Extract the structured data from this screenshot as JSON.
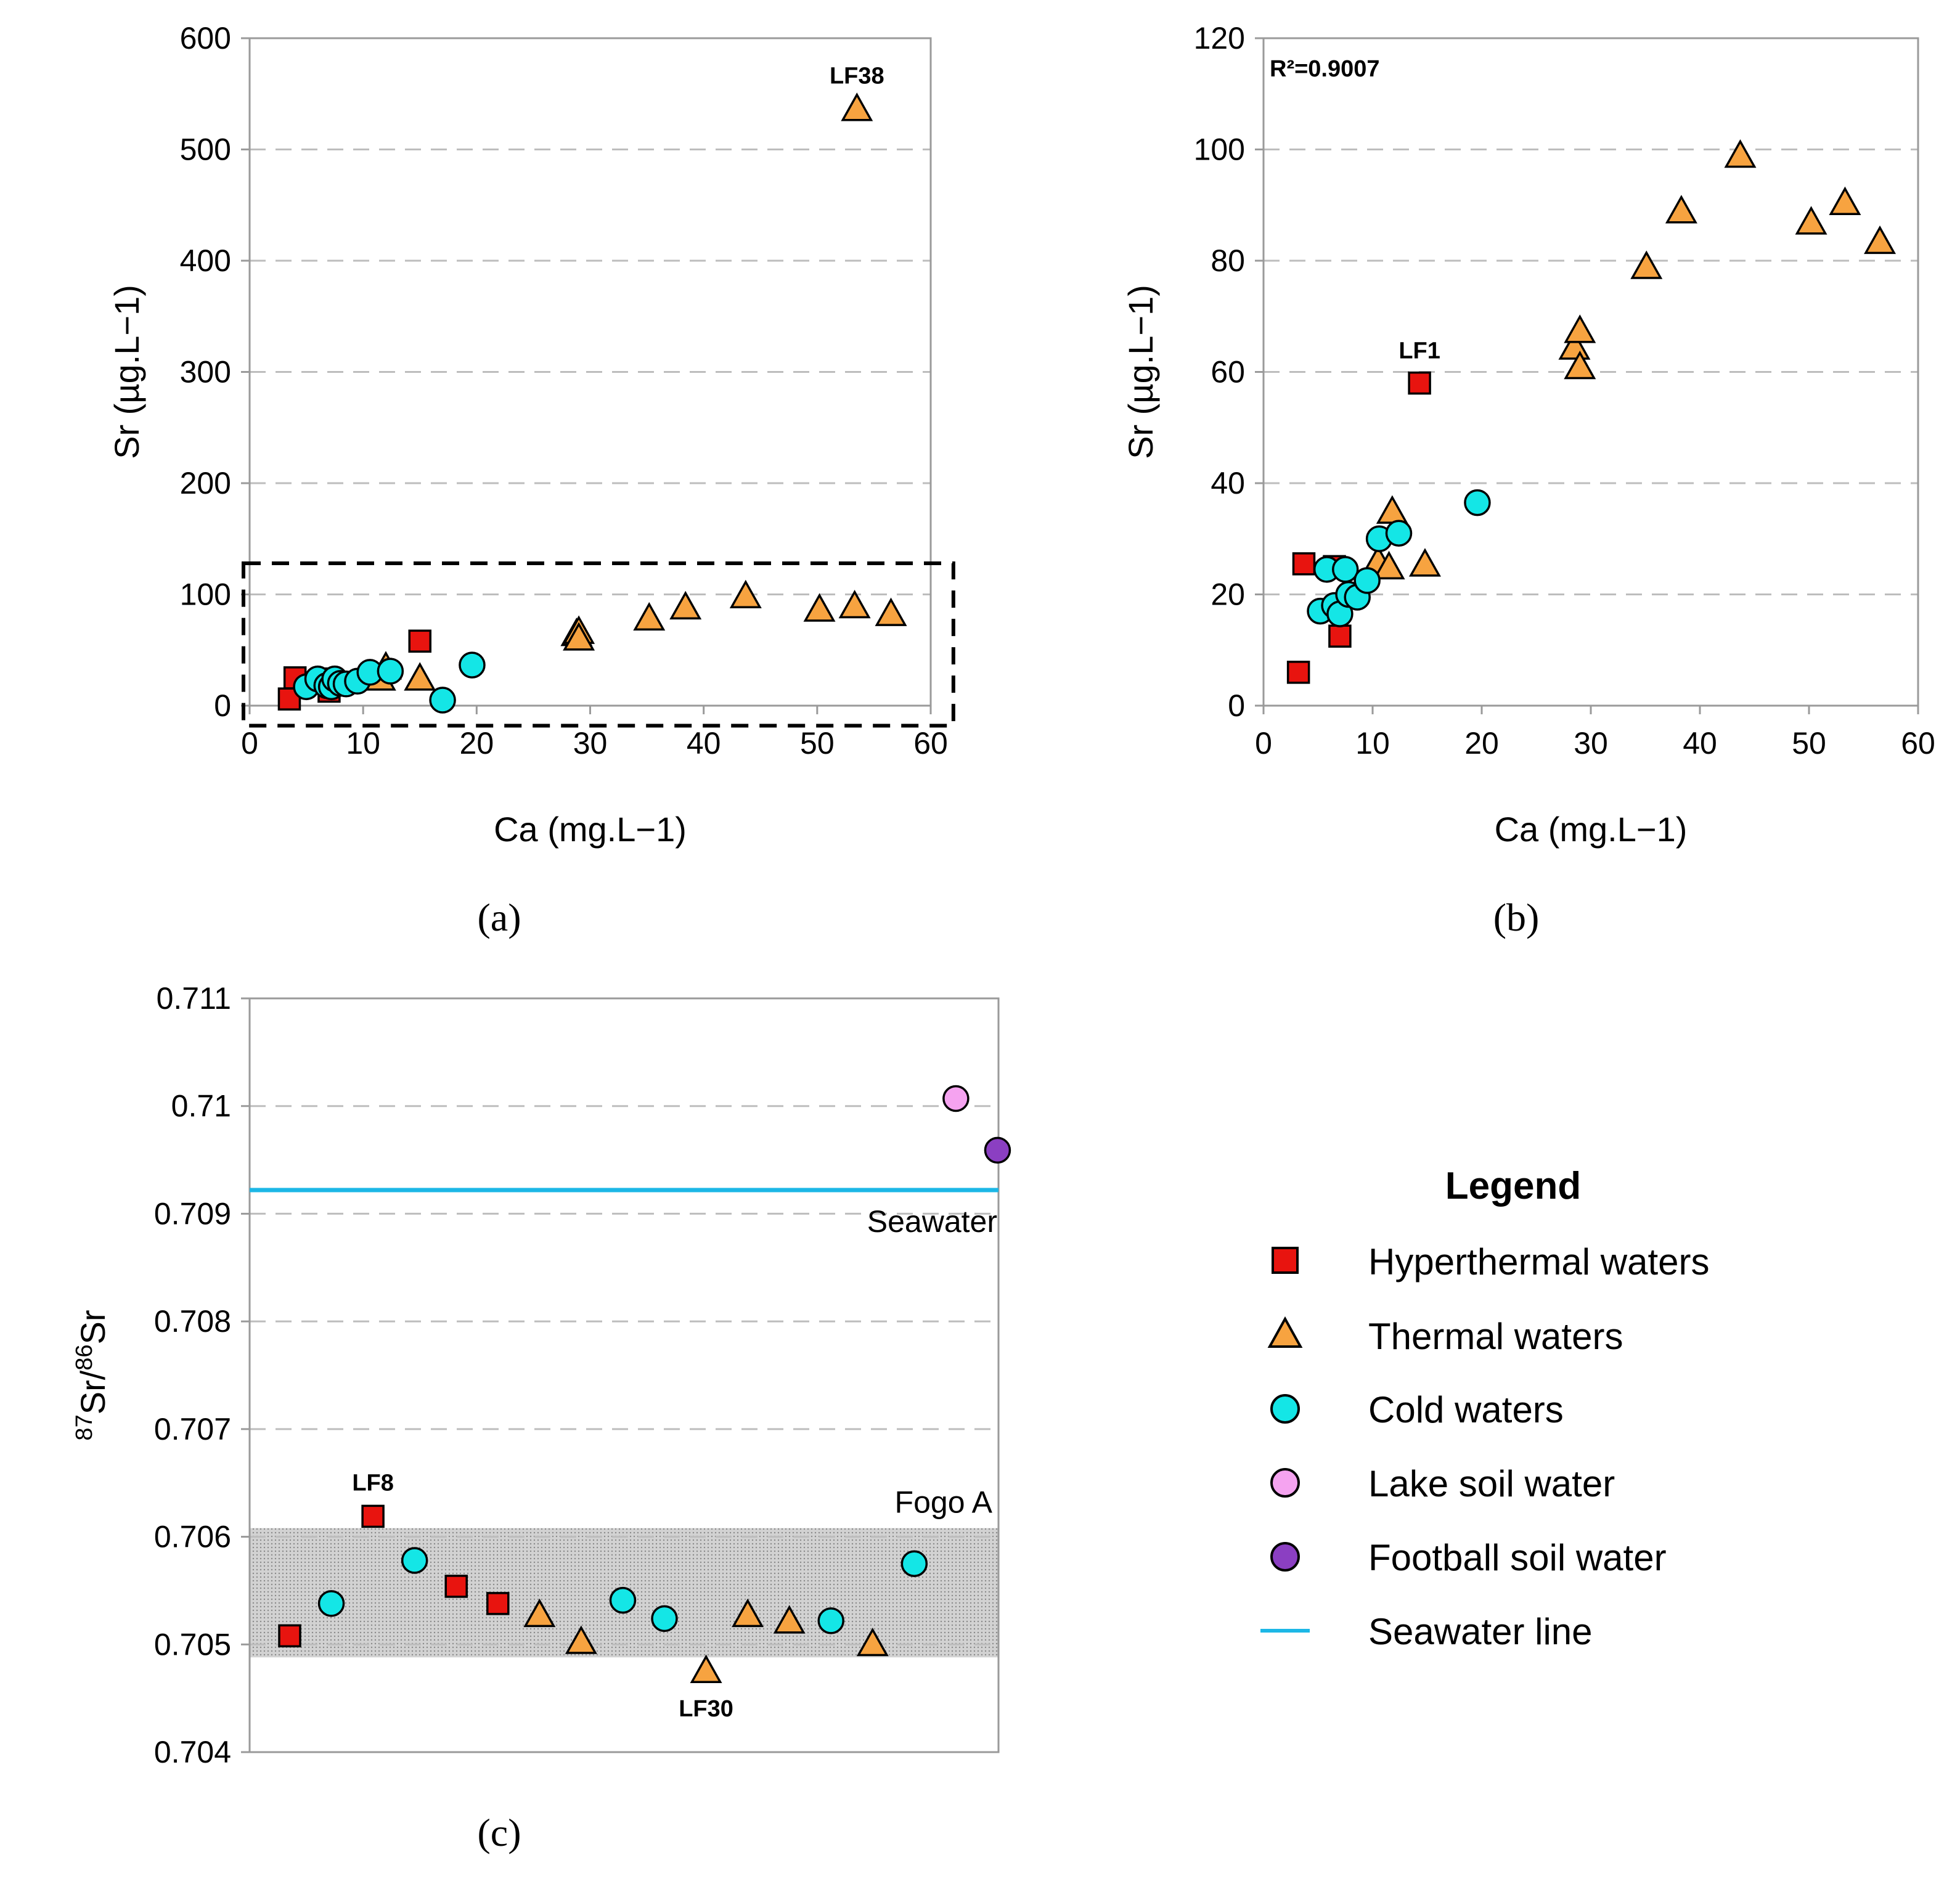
{
  "colors": {
    "hyperthermal": "#e8140f",
    "thermal": "#f7a340",
    "cold": "#14e6e6",
    "lake_soil": "#f5a3f0",
    "football_soil": "#8b3fc2",
    "seawater_line": "#1cb7e6",
    "grid": "#bdbdbd",
    "fogo_band": "#c8c8c8"
  },
  "panels": {
    "a": {
      "caption": "(a)"
    },
    "b": {
      "caption": "(b)",
      "r2": "R²=0.9007"
    },
    "c": {
      "caption": "(c)"
    }
  },
  "legend": {
    "title": "Legend",
    "items": [
      {
        "marker": "square",
        "color": "#e8140f",
        "label": "Hyperthermal waters"
      },
      {
        "marker": "triangle",
        "color": "#f7a340",
        "label": "Thermal waters"
      },
      {
        "marker": "circle",
        "color": "#14e6e6",
        "label": "Cold waters"
      },
      {
        "marker": "circle",
        "color": "#f5a3f0",
        "label": "Lake soil water"
      },
      {
        "marker": "circle",
        "color": "#8b3fc2",
        "label": "Football soil water"
      },
      {
        "marker": "line",
        "color": "#1cb7e6",
        "label": "Seawater line"
      }
    ]
  },
  "chart_data": [
    {
      "id": "a",
      "type": "scatter",
      "xlabel": "Ca (mg.L−1)",
      "ylabel": "Sr (µg.L−1)",
      "xlim": [
        0,
        60
      ],
      "ylim": [
        0,
        600
      ],
      "xticks": [
        "0",
        "10",
        "20",
        "30",
        "40",
        "50",
        "60"
      ],
      "yticks": [
        "0",
        "100",
        "200",
        "300",
        "400",
        "500",
        "600"
      ],
      "grid": "horizontal dashed",
      "series": [
        {
          "name": "Hyperthermal waters",
          "marker": "square",
          "points": [
            [
              3.5,
              6
            ],
            [
              4,
              25
            ],
            [
              7,
              13
            ],
            [
              7,
              24
            ],
            [
              15,
              58
            ]
          ]
        },
        {
          "name": "Thermal waters",
          "marker": "triangle",
          "points": [
            [
              10.5,
              26
            ],
            [
              12,
              35
            ],
            [
              11.5,
              25
            ],
            [
              15,
              25
            ],
            [
              28.8,
              65
            ],
            [
              29,
              67
            ],
            [
              29,
              61
            ],
            [
              35.2,
              79
            ],
            [
              38.4,
              89
            ],
            [
              43.7,
              99
            ],
            [
              50.2,
              87
            ],
            [
              53.3,
              90
            ],
            [
              56.5,
              83
            ],
            [
              53.5,
              537
            ]
          ]
        },
        {
          "name": "Cold waters",
          "marker": "circle",
          "points": [
            [
              5,
              17
            ],
            [
              6,
              24
            ],
            [
              6.8,
              18
            ],
            [
              7.2,
              17
            ],
            [
              7.5,
              24
            ],
            [
              8,
              20
            ],
            [
              8.5,
              19.5
            ],
            [
              9.5,
              22
            ],
            [
              10.6,
              30
            ],
            [
              12.4,
              31
            ],
            [
              17,
              5
            ],
            [
              19.6,
              36.5
            ]
          ]
        }
      ],
      "annotations": [
        {
          "text": "LF38",
          "x": 53.5,
          "y": 537
        }
      ],
      "highlight_box": {
        "x": [
          0,
          62
        ],
        "y": [
          -18,
          128
        ],
        "style": "dashed"
      }
    },
    {
      "id": "b",
      "type": "scatter",
      "xlabel": "Ca (mg.L−1)",
      "ylabel": "Sr (µg.L−1)",
      "xlim": [
        0,
        60
      ],
      "ylim": [
        0,
        120
      ],
      "xticks": [
        "0",
        "10",
        "20",
        "30",
        "40",
        "50",
        "60"
      ],
      "yticks": [
        "0",
        "20",
        "40",
        "60",
        "80",
        "100",
        "120"
      ],
      "grid": "horizontal dashed",
      "r2": "R²=0.9007",
      "series": [
        {
          "name": "Hyperthermal waters",
          "marker": "square",
          "points": [
            [
              3.2,
              6
            ],
            [
              3.7,
              25.5
            ],
            [
              6.5,
              25
            ],
            [
              7,
              12.5
            ],
            [
              14.3,
              58
            ]
          ]
        },
        {
          "name": "Thermal waters",
          "marker": "triangle",
          "points": [
            [
              10.5,
              26
            ],
            [
              11.8,
              35
            ],
            [
              11.5,
              25
            ],
            [
              14.8,
              25.5
            ],
            [
              28.5,
              64.5
            ],
            [
              29,
              67.5
            ],
            [
              29,
              61
            ],
            [
              35.1,
              79
            ],
            [
              38.3,
              89
            ],
            [
              43.7,
              99
            ],
            [
              50.2,
              87
            ],
            [
              53.3,
              90.5
            ],
            [
              56.5,
              83.5
            ]
          ]
        },
        {
          "name": "Cold waters",
          "marker": "circle",
          "points": [
            [
              5.2,
              17
            ],
            [
              5.8,
              24.5
            ],
            [
              6.5,
              18
            ],
            [
              7,
              16.5
            ],
            [
              7.5,
              24.5
            ],
            [
              7.8,
              20
            ],
            [
              8.6,
              19.5
            ],
            [
              9.5,
              22.5
            ],
            [
              10.6,
              30
            ],
            [
              12.4,
              31
            ],
            [
              19.6,
              36.5
            ]
          ]
        }
      ],
      "annotations": [
        {
          "text": "LF1",
          "x": 14.3,
          "y": 58
        }
      ]
    },
    {
      "id": "c",
      "type": "scatter",
      "xlabel": "",
      "ylabel": "87Sr/86Sr",
      "ylim": [
        0.704,
        0.711
      ],
      "yticks": [
        "0.704",
        "0.705",
        "0.706",
        "0.707",
        "0.708",
        "0.709",
        "0.71",
        "0.711"
      ],
      "grid": "horizontal dashed",
      "sample_positions": [
        1,
        19
      ],
      "series": [
        {
          "name": "Hyperthermal waters",
          "marker": "square",
          "points": [
            [
              1,
              0.70508
            ],
            [
              3,
              0.70619
            ],
            [
              5,
              0.70554
            ],
            [
              6,
              0.70538
            ]
          ]
        },
        {
          "name": "Thermal waters",
          "marker": "triangle",
          "points": [
            [
              7,
              0.70528
            ],
            [
              8,
              0.70503
            ],
            [
              11,
              0.70476
            ],
            [
              12,
              0.70528
            ],
            [
              13,
              0.70522
            ],
            [
              15,
              0.70501
            ]
          ]
        },
        {
          "name": "Cold waters",
          "marker": "circle",
          "points": [
            [
              2,
              0.70538
            ],
            [
              4,
              0.70578
            ],
            [
              9,
              0.70541
            ],
            [
              10,
              0.70524
            ],
            [
              14,
              0.70522
            ],
            [
              16,
              0.70575
            ]
          ]
        },
        {
          "name": "Lake soil water",
          "marker": "circle",
          "points": [
            [
              17,
              0.71007
            ]
          ]
        },
        {
          "name": "Football soil water",
          "marker": "circle",
          "points": [
            [
              18,
              0.70959
            ]
          ]
        }
      ],
      "reference_lines": [
        {
          "label": "Seawater",
          "y": 0.70922
        }
      ],
      "bands": [
        {
          "label": "Fogo A",
          "y": [
            0.70488,
            0.70608
          ]
        }
      ],
      "annotations": [
        {
          "text": "LF8",
          "x": 3,
          "y": 0.70619
        },
        {
          "text": "LF30",
          "x": 11,
          "y": 0.70476
        }
      ]
    }
  ]
}
